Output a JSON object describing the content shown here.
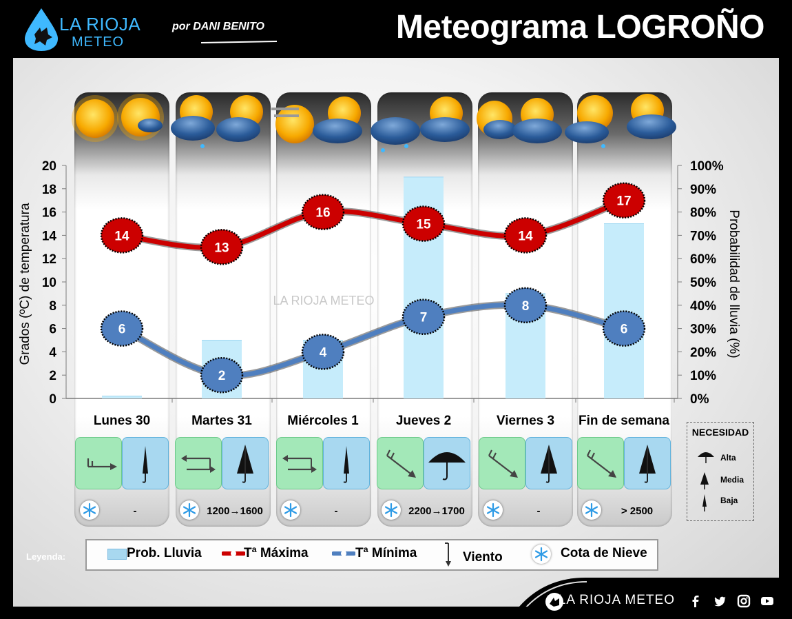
{
  "header": {
    "logo_line1": "LA RIOJA",
    "logo_line2": "METEO",
    "author": "por DANI BENITO",
    "title": "Meteograma LOGROÑO"
  },
  "chart_data": {
    "type": "line",
    "categories": [
      "Lunes 30",
      "Martes 31",
      "Miércoles 1",
      "Jueves 2",
      "Viernes 3",
      "Fin de semana"
    ],
    "series": [
      {
        "name": "Tª Máxima",
        "values": [
          14,
          13,
          16,
          15,
          14,
          17
        ],
        "color": "#cc0000"
      },
      {
        "name": "Tª Mínima",
        "values": [
          6,
          2,
          4,
          7,
          8,
          6
        ],
        "color": "#4f7fbf"
      }
    ],
    "bars": {
      "name": "Prob. Lluvia",
      "values": [
        1,
        25,
        25,
        95,
        45,
        75
      ],
      "color": "#c6ecfb"
    },
    "ylabel": "Grados (ºC) de temperatura",
    "ylim": [
      0,
      20
    ],
    "yticks": [
      "0",
      "2",
      "4",
      "6",
      "8",
      "10",
      "12",
      "14",
      "16",
      "18",
      "20"
    ],
    "y2label": "Probabilidad de lluvia (%)",
    "y2lim": [
      0,
      100
    ],
    "y2ticks": [
      "0%",
      "10%",
      "20%",
      "30%",
      "40%",
      "50%",
      "60%",
      "70%",
      "80%",
      "90%",
      "100%"
    ],
    "watermark": "LA RIOJA METEO"
  },
  "days": [
    {
      "label": "Lunes 30",
      "snow": "-",
      "wind_icon": "wind-west-arrow-icon",
      "rain_icon": "umbrella-closed-thin-icon"
    },
    {
      "label": "Martes 31",
      "snow": "1200→1600",
      "wind_icon": "wind-variable-arrows-icon",
      "rain_icon": "umbrella-closed-wide-icon"
    },
    {
      "label": "Miércoles 1",
      "snow": "-",
      "wind_icon": "wind-variable-arrows-icon",
      "rain_icon": "umbrella-closed-thin-icon"
    },
    {
      "label": "Jueves 2",
      "snow": "2200→1700",
      "wind_icon": "wind-northwest-arrow-icon",
      "rain_icon": "umbrella-open-icon"
    },
    {
      "label": "Viernes 3",
      "snow": "-",
      "wind_icon": "wind-northwest-arrow-icon",
      "rain_icon": "umbrella-closed-wide-icon"
    },
    {
      "label": "Fin de semana",
      "snow": "> 2500",
      "wind_icon": "wind-northwest-arrow-icon",
      "rain_icon": "umbrella-closed-wide-icon"
    }
  ],
  "necesidad": {
    "title": "NECESIDAD",
    "levels": [
      "Alta",
      "Media",
      "Baja"
    ]
  },
  "legend": {
    "title": "Leyenda:",
    "rain": "Prob. Lluvia",
    "tmax": "Tª Máxima",
    "tmin": "Tª Mínima",
    "wind": "Viento",
    "snow": "Cota de Nieve"
  },
  "footer": {
    "brand": "LA RIOJA METEO",
    "social_icons": [
      "facebook-icon",
      "twitter-icon",
      "instagram-icon",
      "youtube-icon"
    ]
  },
  "colors": {
    "tmax": "#cc0000",
    "tmin": "#4f7fbf",
    "rain_bar": "#c6ecfb",
    "wind_tile": "#a3e8b8",
    "rain_tile": "#a8d8f0",
    "brand_blue": "#3fb9ff"
  }
}
